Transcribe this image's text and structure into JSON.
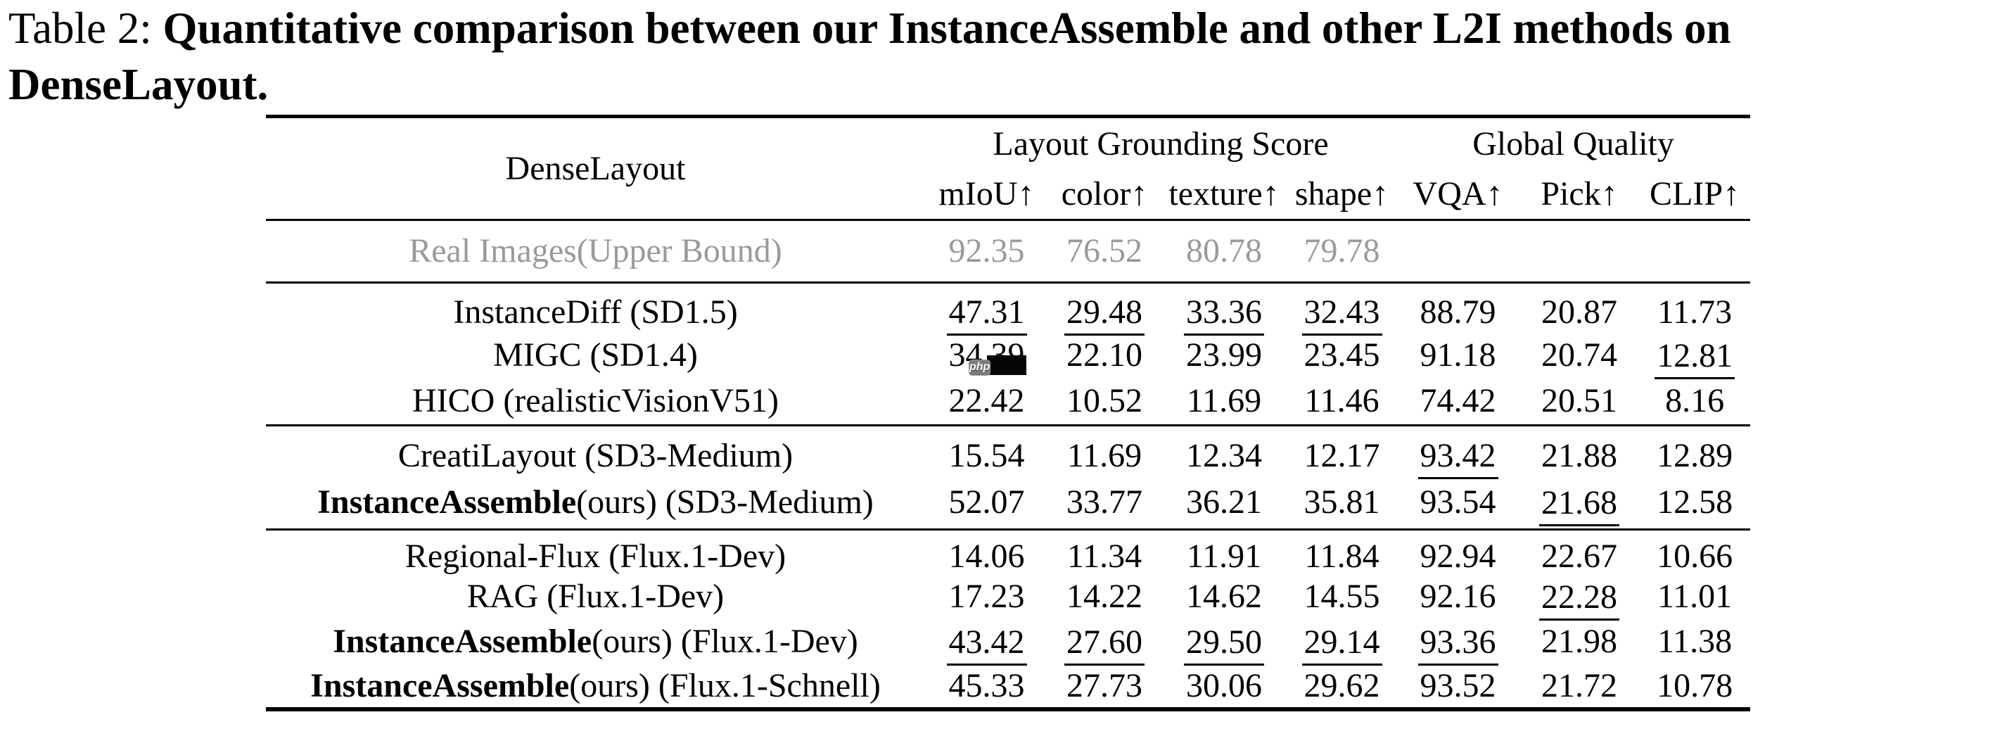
{
  "title": {
    "label": "Table 2:",
    "text": "Quantitative comparison between our InstanceAssemble and other L2I methods on DenseLayout."
  },
  "table": {
    "corner_header": "DenseLayout",
    "group_headers": [
      {
        "label": "Layout Grounding Score"
      },
      {
        "label": "Global Quality"
      }
    ],
    "column_headers": [
      "mIoU↑",
      "color↑",
      "texture↑",
      "shape↑",
      "VQA↑",
      "Pick↑",
      "CLIP↑"
    ],
    "groups": [
      {
        "muted": true,
        "rows": [
          {
            "method_bold": "",
            "method": "Real Images(Upper Bound)",
            "cells": [
              [
                "92.35",
                ""
              ],
              [
                "76.52",
                ""
              ],
              [
                "80.78",
                ""
              ],
              [
                "79.78",
                ""
              ],
              [
                "",
                ""
              ],
              [
                "",
                ""
              ],
              [
                "",
                ""
              ]
            ]
          }
        ]
      },
      {
        "muted": false,
        "rows": [
          {
            "method_bold": "",
            "method": "InstanceDiff (SD1.5)",
            "cells": [
              [
                "47.31",
                "u"
              ],
              [
                "29.48",
                "u"
              ],
              [
                "33.36",
                "u"
              ],
              [
                "32.43",
                "u"
              ],
              [
                "88.79",
                ""
              ],
              [
                "20.87",
                ""
              ],
              [
                "11.73",
                ""
              ]
            ]
          },
          {
            "method_bold": "",
            "method": "MIGC (SD1.4)",
            "cells": [
              [
                "34.39",
                ""
              ],
              [
                "22.10",
                ""
              ],
              [
                "23.99",
                ""
              ],
              [
                "23.45",
                ""
              ],
              [
                "91.18",
                ""
              ],
              [
                "20.74",
                ""
              ],
              [
                "12.81",
                "u"
              ]
            ]
          },
          {
            "method_bold": "",
            "method": "HICO (realisticVisionV51)",
            "cells": [
              [
                "22.42",
                ""
              ],
              [
                "10.52",
                ""
              ],
              [
                "11.69",
                ""
              ],
              [
                "11.46",
                ""
              ],
              [
                "74.42",
                ""
              ],
              [
                "20.51",
                ""
              ],
              [
                "8.16",
                ""
              ]
            ]
          }
        ]
      },
      {
        "muted": false,
        "rows": [
          {
            "method_bold": "",
            "method": "CreatiLayout (SD3-Medium)",
            "cells": [
              [
                "15.54",
                ""
              ],
              [
                "11.69",
                ""
              ],
              [
                "12.34",
                ""
              ],
              [
                "12.17",
                ""
              ],
              [
                "93.42",
                "u"
              ],
              [
                "21.88",
                "b"
              ],
              [
                "12.89",
                "b"
              ]
            ]
          },
          {
            "method_bold": "InstanceAssemble",
            "method": "(ours) (SD3-Medium)",
            "cells": [
              [
                "52.07",
                "b"
              ],
              [
                "33.77",
                "b"
              ],
              [
                "36.21",
                "b"
              ],
              [
                "35.81",
                "b"
              ],
              [
                "93.54",
                "b"
              ],
              [
                "21.68",
                "u"
              ],
              [
                "12.58",
                ""
              ]
            ]
          }
        ]
      },
      {
        "muted": false,
        "rows": [
          {
            "method_bold": "",
            "method": "Regional-Flux (Flux.1-Dev)",
            "cells": [
              [
                "14.06",
                ""
              ],
              [
                "11.34",
                ""
              ],
              [
                "11.91",
                ""
              ],
              [
                "11.84",
                ""
              ],
              [
                "92.94",
                ""
              ],
              [
                "22.67",
                "b"
              ],
              [
                "10.66",
                ""
              ]
            ]
          },
          {
            "method_bold": "",
            "method": "RAG (Flux.1-Dev)",
            "cells": [
              [
                "17.23",
                ""
              ],
              [
                "14.22",
                ""
              ],
              [
                "14.62",
                ""
              ],
              [
                "14.55",
                ""
              ],
              [
                "92.16",
                ""
              ],
              [
                "22.28",
                "u"
              ],
              [
                "11.01",
                ""
              ]
            ]
          },
          {
            "method_bold": "InstanceAssemble",
            "method": "(ours) (Flux.1-Dev)",
            "cells": [
              [
                "43.42",
                "u"
              ],
              [
                "27.60",
                "u"
              ],
              [
                "29.50",
                "u"
              ],
              [
                "29.14",
                "u"
              ],
              [
                "93.36",
                "u"
              ],
              [
                "21.98",
                ""
              ],
              [
                "11.38",
                "b"
              ]
            ]
          },
          {
            "method_bold": "InstanceAssemble",
            "method": "(ours) (Flux.1-Schnell)",
            "cells": [
              [
                "45.33",
                "b"
              ],
              [
                "27.73",
                "b"
              ],
              [
                "30.06",
                "b"
              ],
              [
                "29.62",
                "b"
              ],
              [
                "93.52",
                "b"
              ],
              [
                "21.72",
                ""
              ],
              [
                "10.78",
                "u"
              ]
            ]
          }
        ]
      }
    ],
    "artifact": {
      "badge_text": "php",
      "badge_bg": "#7b7b7b",
      "box_bg": "#050505"
    }
  },
  "colors": {
    "text": "#000000",
    "muted_row": "#9a9a9a",
    "background": "#ffffff"
  }
}
